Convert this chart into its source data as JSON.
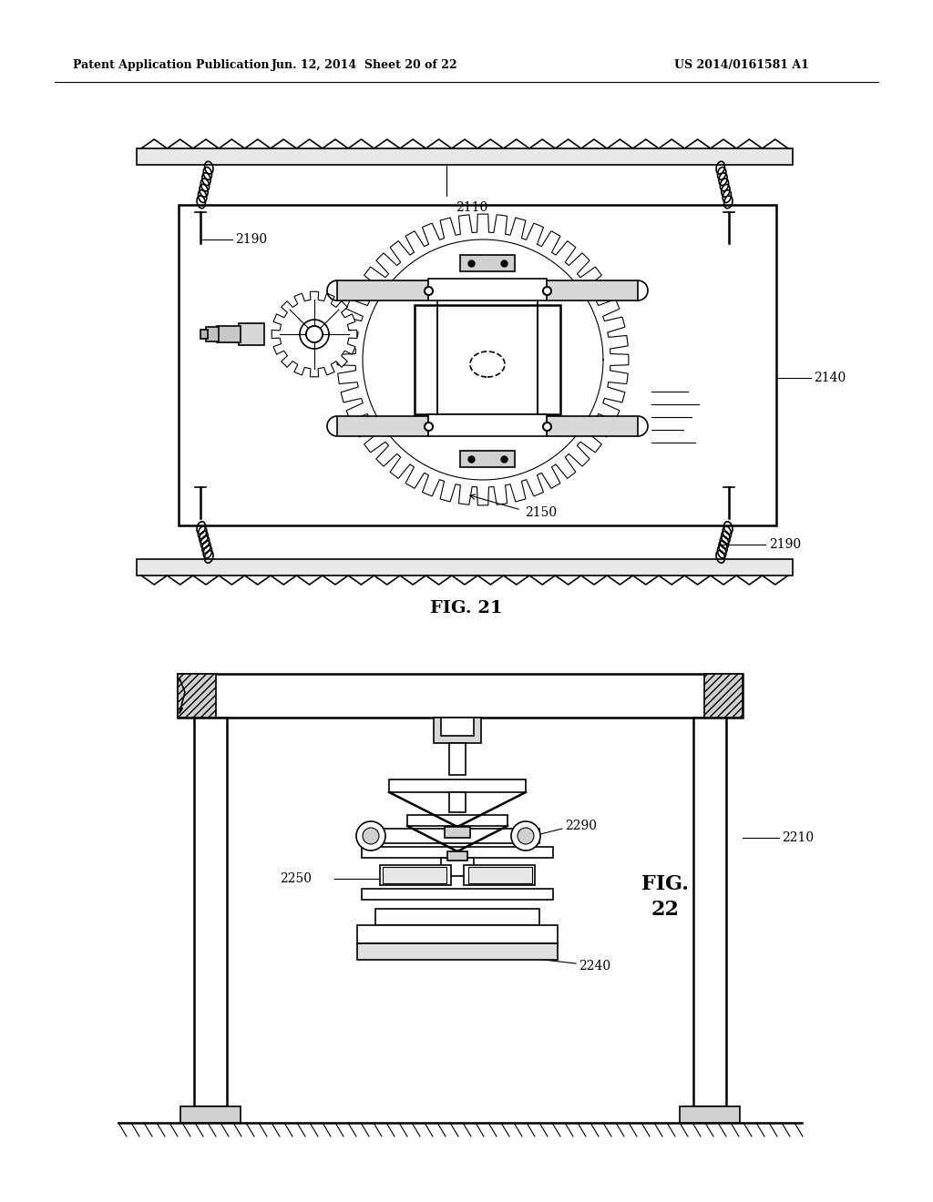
{
  "bg_color": "#ffffff",
  "header_left": "Patent Application Publication",
  "header_mid": "Jun. 12, 2014  Sheet 20 of 22",
  "header_right": "US 2014/0161581 A1",
  "fig21_label": "FIG. 21",
  "fig22_label": "FIG.\n22",
  "label_2110": "2110",
  "label_2190_top": "2190",
  "label_2140": "2140",
  "label_2150": "2150",
  "label_2190_bot": "2190",
  "label_2210": "2210",
  "label_2290": "2290",
  "label_2250": "2250",
  "label_2240": "2240"
}
